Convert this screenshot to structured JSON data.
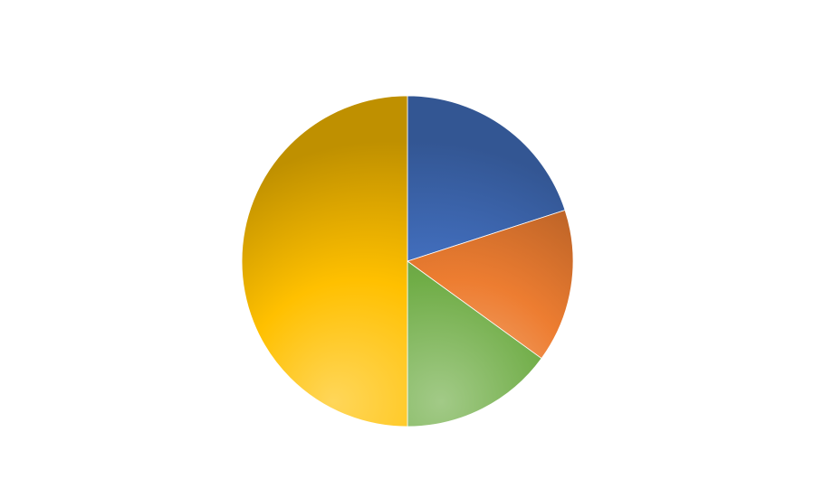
{
  "chart_data": {
    "type": "pie",
    "title": "",
    "start_angle_deg": 0,
    "direction": "clockwise",
    "legend": "none",
    "data_labels": "none",
    "slices": [
      {
        "name": "",
        "value": 20,
        "color": "#4472C4"
      },
      {
        "name": "",
        "value": 15,
        "color": "#ED7D31"
      },
      {
        "name": "",
        "value": 15,
        "color": "#70AD47"
      },
      {
        "name": "",
        "value": 50,
        "color": "#FFC000"
      }
    ]
  }
}
